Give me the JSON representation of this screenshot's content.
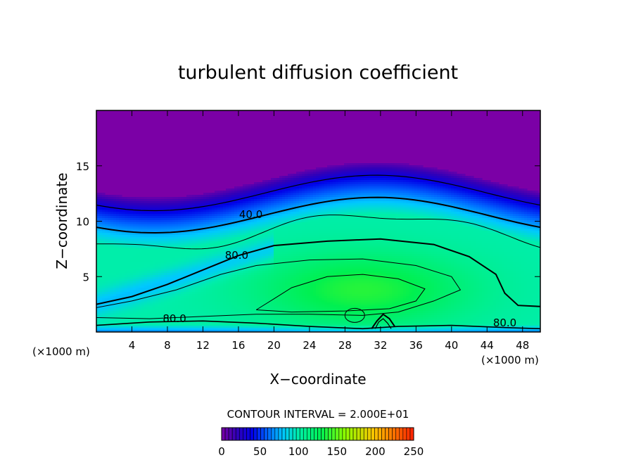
{
  "chart_data": {
    "type": "heatmap",
    "title": "turbulent diffusion coefficient",
    "xlabel": "X−coordinate",
    "ylabel": "Z−coordinate",
    "x_unit_left": "(×1000 m)",
    "x_unit_right": "(×1000 m)",
    "xlim": [
      0,
      50
    ],
    "ylim": [
      0,
      20
    ],
    "xticks": [
      4,
      8,
      12,
      16,
      20,
      24,
      28,
      32,
      36,
      40,
      44,
      48
    ],
    "yticks": [
      5,
      10,
      15
    ],
    "contour_interval_text": "CONTOUR INTERVAL = 2.000E+01",
    "contour_labels": [
      {
        "text": "40.0",
        "x": 17.4,
        "z": 10.3
      },
      {
        "text": "80.0",
        "x": 15.8,
        "z": 6.6
      },
      {
        "text": "80.0",
        "x": 8.8,
        "z": 0.9
      },
      {
        "text": "80.0",
        "x": 46.0,
        "z": 0.5
      }
    ],
    "colorbar": {
      "range": [
        0,
        250
      ],
      "ticks": [
        0,
        50,
        100,
        150,
        200,
        250
      ],
      "tick_labels": [
        "0",
        "50",
        "100",
        "150",
        "200",
        "250"
      ]
    },
    "color_stops": [
      {
        "v": 0,
        "c": "#7b00a6"
      },
      {
        "v": 20,
        "c": "#3000b8"
      },
      {
        "v": 40,
        "c": "#0000e8"
      },
      {
        "v": 60,
        "c": "#0066ff"
      },
      {
        "v": 80,
        "c": "#00c8ff"
      },
      {
        "v": 100,
        "c": "#00eeaa"
      },
      {
        "v": 130,
        "c": "#00f050"
      },
      {
        "v": 160,
        "c": "#8cff00"
      },
      {
        "v": 200,
        "c": "#ffc000"
      },
      {
        "v": 250,
        "c": "#ff2000"
      }
    ],
    "field_description": {
      "background_value": 0,
      "core_value": 130,
      "core_center": [
        30,
        3.8
      ]
    }
  }
}
